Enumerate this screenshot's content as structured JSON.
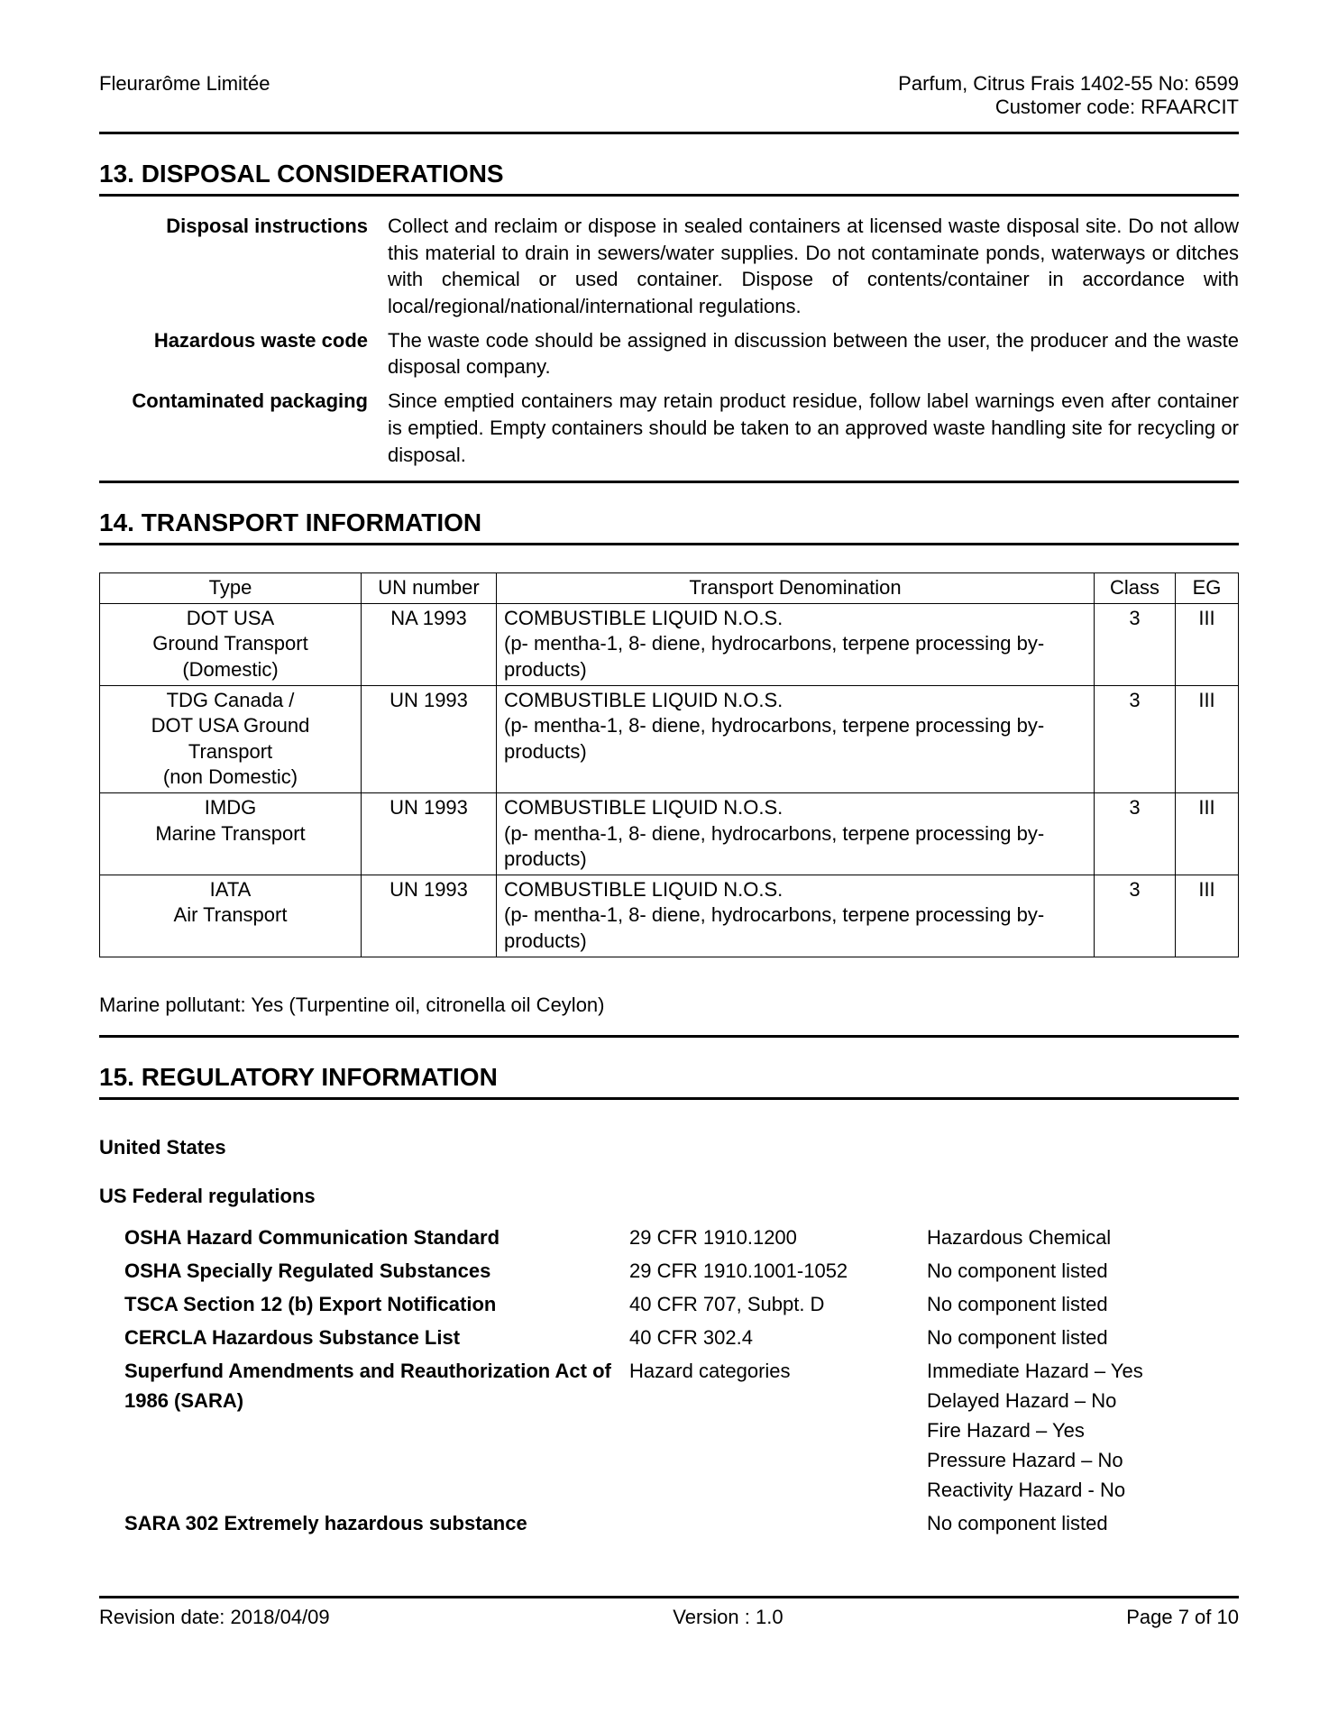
{
  "header": {
    "left": "Fleurarôme Limitée",
    "right1": "Parfum, Citrus Frais 1402-55 No: 6599",
    "right2": "Customer code: RFAARCIT"
  },
  "section13": {
    "title": "13. DISPOSAL CONSIDERATIONS",
    "items": [
      {
        "label": "Disposal instructions",
        "value": "Collect and reclaim or dispose in sealed containers at licensed waste disposal site. Do not allow this material to drain in sewers/water supplies. Do not contaminate ponds, waterways or ditches with chemical or used container. Dispose of contents/container in accordance with local/regional/national/international regulations."
      },
      {
        "label": "Hazardous waste code",
        "value": "The waste code should be assigned in discussion between the user, the producer and the waste disposal company."
      },
      {
        "label": "Contaminated packaging",
        "value": "Since emptied containers may retain product residue, follow label warnings even after container is emptied. Empty containers should be taken to an approved waste handling site for recycling or disposal."
      }
    ]
  },
  "section14": {
    "title": "14. TRANSPORT INFORMATION",
    "columns": [
      "Type",
      "UN number",
      "Transport Denomination",
      "Class",
      "EG"
    ],
    "rows": [
      {
        "type": "DOT USA\nGround Transport (Domestic)",
        "un": "NA 1993",
        "denom": "COMBUSTIBLE LIQUID N.O.S.\n(p- mentha-1, 8- diene, hydrocarbons, terpene processing by- products)",
        "class": "3",
        "eg": "III"
      },
      {
        "type": "TDG Canada /\nDOT USA Ground Transport\n(non Domestic)",
        "un": "UN 1993",
        "denom": "COMBUSTIBLE LIQUID N.O.S.\n(p- mentha-1, 8- diene, hydrocarbons, terpene processing by- products)",
        "class": "3",
        "eg": "III"
      },
      {
        "type": "IMDG\nMarine Transport",
        "un": "UN 1993",
        "denom": "COMBUSTIBLE LIQUID N.O.S.\n(p- mentha-1, 8- diene, hydrocarbons, terpene processing by- products)",
        "class": "3",
        "eg": "III"
      },
      {
        "type": "IATA\nAir Transport",
        "un": "UN 1993",
        "denom": "COMBUSTIBLE LIQUID N.O.S.\n(p- mentha-1, 8- diene, hydrocarbons, terpene processing by- products)",
        "class": "3",
        "eg": "III"
      }
    ],
    "note": "Marine pollutant: Yes (Turpentine oil, citronella oil Ceylon)"
  },
  "section15": {
    "title": "15. REGULATORY INFORMATION",
    "sub1": "United States",
    "sub2": "US Federal regulations",
    "regs": [
      {
        "name": "OSHA Hazard Communication Standard",
        "cite": "29 CFR 1910.1200",
        "status": "Hazardous Chemical"
      },
      {
        "name": "OSHA Specially Regulated Substances",
        "cite": "29 CFR 1910.1001-1052",
        "status": "No component listed"
      },
      {
        "name": "TSCA Section 12 (b) Export Notification",
        "cite": "40 CFR 707, Subpt. D",
        "status": "No component listed"
      },
      {
        "name": "CERCLA Hazardous Substance List",
        "cite": "40 CFR 302.4",
        "status": "No component listed"
      },
      {
        "name": "Superfund Amendments and Reauthorization Act of 1986 (SARA)",
        "cite": "Hazard categories",
        "status": "Immediate Hazard – Yes\nDelayed Hazard – No\nFire Hazard – Yes\nPressure Hazard – No\nReactivity Hazard - No"
      },
      {
        "name": "SARA 302 Extremely hazardous substance",
        "cite": "",
        "status": "No component listed"
      }
    ]
  },
  "footer": {
    "left": "Revision date:  2018/04/09",
    "center": "Version : 1.0",
    "right": "Page 7 of 10"
  }
}
